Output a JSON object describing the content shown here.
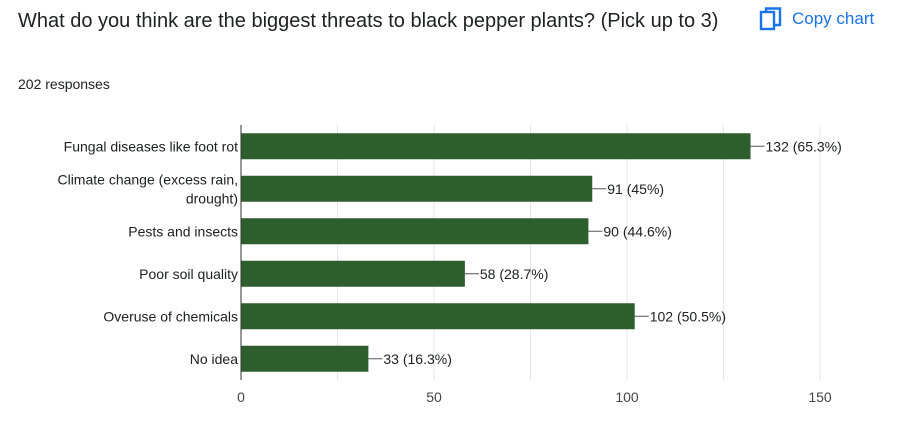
{
  "header": {
    "question": "What do you think are the biggest threats to black pepper plants? (Pick up to 3)",
    "responses": "202 responses",
    "copy_chart_label": "Copy chart"
  },
  "colors": {
    "bar": "#2e5d2e",
    "accent": "#1a73e8",
    "grid": "#e6e6e6"
  },
  "icons": {
    "copy": "copy-icon"
  },
  "chart_data": {
    "type": "bar",
    "orientation": "horizontal",
    "categories": [
      [
        "Fungal diseases like foot rot"
      ],
      [
        "Climate change (excess rain,",
        "drought)"
      ],
      [
        "Pests and insects"
      ],
      [
        "Poor soil quality"
      ],
      [
        "Overuse of chemicals"
      ],
      [
        "No idea"
      ]
    ],
    "values": [
      132,
      91,
      90,
      58,
      102,
      33
    ],
    "value_labels": [
      "132 (65.3%)",
      "91 (45%)",
      "90 (44.6%)",
      "58 (28.7%)",
      "102 (50.5%)",
      "33 (16.3%)"
    ],
    "xlim": [
      0,
      150
    ],
    "xticks": [
      0,
      50,
      100,
      150
    ],
    "grid": true,
    "title": "",
    "xlabel": "",
    "ylabel": ""
  }
}
